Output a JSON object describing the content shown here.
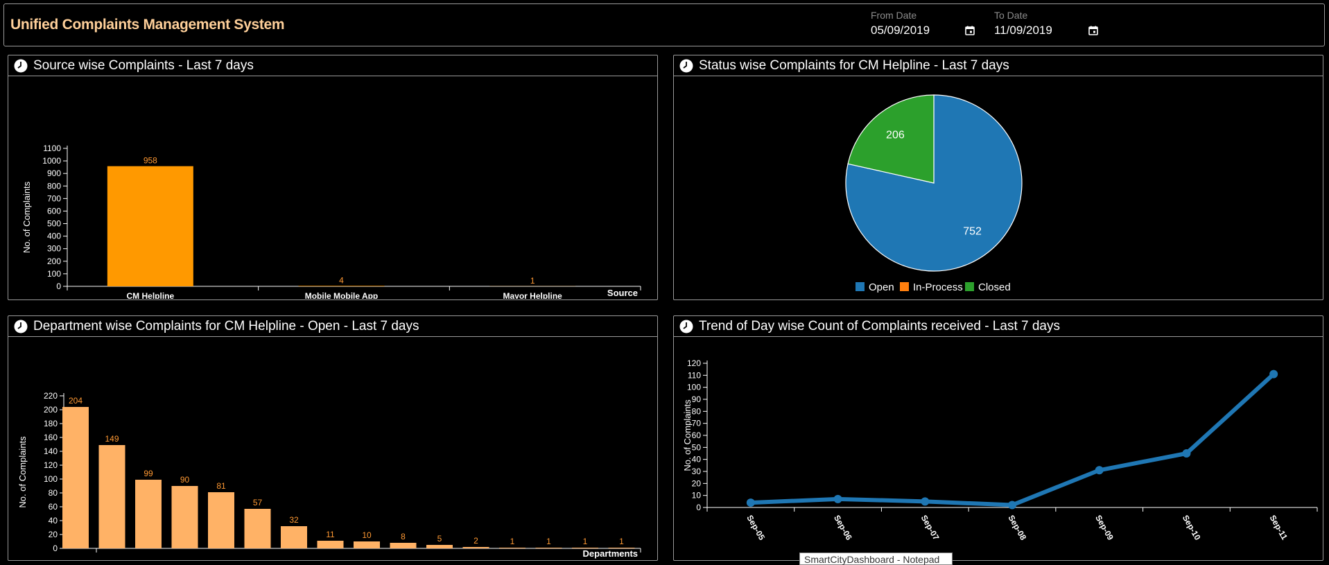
{
  "header": {
    "title": "Unified Complaints Management System",
    "from_label": "From Date",
    "from_value": "05/09/2019",
    "to_label": "To Date",
    "to_value": "11/09/2019"
  },
  "panels": {
    "source": {
      "title": "Source wise Complaints - Last 7 days"
    },
    "status": {
      "title": "Status wise Complaints for CM Helpline - Last 7 days"
    },
    "department": {
      "title": "Department wise Complaints for CM Helpline - Open - Last 7 days"
    },
    "trend": {
      "title": "Trend of Day wise Count of Complaints received - Last 7 days"
    }
  },
  "taskbar_tooltip": "SmartCityDashboard - Notepad",
  "colors": {
    "bar_source": "#ff9900",
    "bar_department": "#ffb266",
    "label_orange": "#ff9933",
    "pie_open": "#1f77b4",
    "pie_in_process": "#ff7f0e",
    "pie_closed": "#2ca02c",
    "line": "#1f77b4"
  },
  "chart_data": [
    {
      "id": "source",
      "type": "bar",
      "categories": [
        "CM Helpline",
        "Mobile Mobile App",
        "Mayor Helpline"
      ],
      "values": [
        958,
        4,
        1
      ],
      "xlabel": "Source",
      "ylabel": "No. of Complaints",
      "ylim": [
        0,
        1100
      ],
      "yticks": [
        0,
        100,
        200,
        300,
        400,
        500,
        600,
        700,
        800,
        900,
        1000,
        1100
      ]
    },
    {
      "id": "status",
      "type": "pie",
      "labels": [
        "Open",
        "In-Process",
        "Closed"
      ],
      "values": [
        752,
        0,
        206
      ],
      "legend": "bottom"
    },
    {
      "id": "department",
      "type": "bar",
      "categories": [
        "",
        "",
        "",
        "",
        "",
        "",
        "",
        "",
        "",
        "",
        "",
        "",
        "",
        "",
        "",
        ""
      ],
      "values": [
        204,
        149,
        99,
        90,
        81,
        57,
        32,
        11,
        10,
        8,
        5,
        2,
        1,
        1,
        1,
        1
      ],
      "xlabel": "Departments",
      "ylabel": "No. of Complaints",
      "ylim": [
        0,
        220
      ],
      "yticks": [
        0,
        20,
        40,
        60,
        80,
        100,
        120,
        140,
        160,
        180,
        200,
        220
      ]
    },
    {
      "id": "trend",
      "type": "line",
      "x": [
        "Sep-05",
        "Sep-06",
        "Sep-07",
        "Sep-08",
        "Sep-09",
        "Sep-10",
        "Sep-11"
      ],
      "values": [
        4,
        7,
        5,
        2,
        31,
        45,
        111
      ],
      "ylabel": "No. of Complaints",
      "ylim": [
        0,
        120
      ],
      "yticks": [
        0,
        10,
        20,
        30,
        40,
        50,
        60,
        70,
        80,
        90,
        100,
        110,
        120
      ]
    }
  ]
}
